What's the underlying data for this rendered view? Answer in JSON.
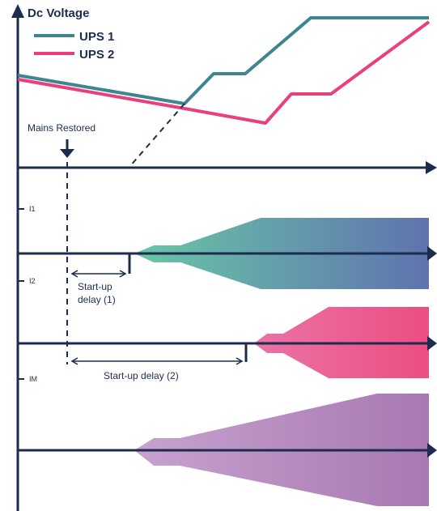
{
  "title": "Dc Voltage",
  "legend": [
    {
      "name": "UPS 1",
      "color": "#3d8591"
    },
    {
      "name": "UPS 2",
      "color": "#ea3e7d"
    }
  ],
  "event_label": "Mains Restored",
  "current_labels": [
    "I1",
    "I2",
    "IM"
  ],
  "delay_labels": {
    "delay1_line1": "Start-up",
    "delay1_line2": "delay (1)",
    "delay2": "Start-up delay (2)"
  },
  "colors": {
    "axis": "#1d2b4e",
    "ups1": "#3d8591",
    "ups2": "#ea3e7d",
    "band1_start": "#69c7a6",
    "band1_end": "#5f73af",
    "band2_start": "#ea74a6",
    "band2_end": "#ec4d82",
    "band3_start": "#c7a2cf",
    "band3_end": "#a878b2"
  }
}
